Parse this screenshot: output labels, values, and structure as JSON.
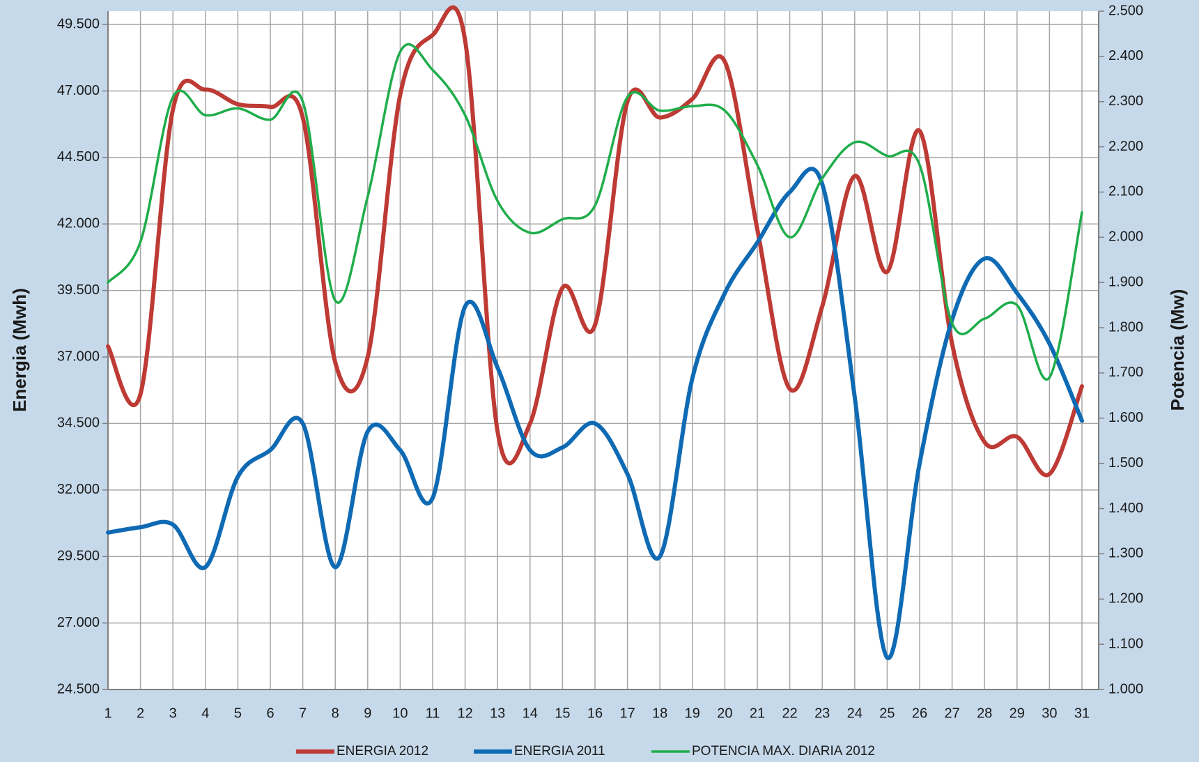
{
  "chart_data": {
    "type": "line",
    "categories": [
      "1",
      "2",
      "3",
      "4",
      "5",
      "6",
      "7",
      "8",
      "9",
      "10",
      "11",
      "12",
      "13",
      "14",
      "15",
      "16",
      "17",
      "18",
      "19",
      "20",
      "21",
      "22",
      "23",
      "24",
      "25",
      "26",
      "27",
      "28",
      "29",
      "30",
      "31"
    ],
    "y_label": "Energia (Mwh)",
    "y2_label": "Potencia (Mw)",
    "ylim": [
      24500,
      50000
    ],
    "yticks": [
      {
        "value": 24500,
        "label": "24.500"
      },
      {
        "value": 27000,
        "label": "27.000"
      },
      {
        "value": 29500,
        "label": "29.500"
      },
      {
        "value": 32000,
        "label": "32.000"
      },
      {
        "value": 34500,
        "label": "34.500"
      },
      {
        "value": 37000,
        "label": "37.000"
      },
      {
        "value": 39500,
        "label": "39.500"
      },
      {
        "value": 42000,
        "label": "42.000"
      },
      {
        "value": 44500,
        "label": "44.500"
      },
      {
        "value": 47000,
        "label": "47.000"
      },
      {
        "value": 49500,
        "label": "49.500"
      }
    ],
    "y2lim": [
      1000,
      2500
    ],
    "y2ticks": [
      {
        "value": 1000,
        "label": "1.000"
      },
      {
        "value": 1100,
        "label": "1.100"
      },
      {
        "value": 1200,
        "label": "1.200"
      },
      {
        "value": 1300,
        "label": "1.300"
      },
      {
        "value": 1400,
        "label": "1.400"
      },
      {
        "value": 1500,
        "label": "1.500"
      },
      {
        "value": 1600,
        "label": "1.600"
      },
      {
        "value": 1700,
        "label": "1.700"
      },
      {
        "value": 1800,
        "label": "1.800"
      },
      {
        "value": 1900,
        "label": "1.900"
      },
      {
        "value": 2000,
        "label": "2.000"
      },
      {
        "value": 2100,
        "label": "2.100"
      },
      {
        "value": 2200,
        "label": "2.200"
      },
      {
        "value": 2300,
        "label": "2.300"
      },
      {
        "value": 2400,
        "label": "2.400"
      },
      {
        "value": 2500,
        "label": "2.500"
      }
    ],
    "grid": true,
    "smooth": true,
    "legend": "bottom",
    "series": [
      {
        "name": "ENERGIA 2012",
        "color": "#be3a34",
        "width": 6,
        "values": [
          37400,
          35600,
          46300,
          47050,
          46500,
          46400,
          46000,
          36800,
          37000,
          46850,
          49100,
          48900,
          34200,
          34500,
          39600,
          38200,
          46600,
          46000,
          46700,
          48100,
          41800,
          35800,
          38900,
          43800,
          40200,
          45500,
          37500,
          33800,
          34000,
          32600,
          35900
        ]
      },
      {
        "name": "ENERGIA 2011",
        "color": "#0f6ab4",
        "width": 6,
        "values": [
          30400,
          30600,
          30700,
          29100,
          32500,
          33500,
          34500,
          29100,
          34200,
          33500,
          31700,
          38900,
          36600,
          33500,
          33600,
          34500,
          32600,
          29500,
          36200,
          39400,
          41300,
          43200,
          43500,
          35500,
          25700,
          33000,
          38400,
          40700,
          39400,
          37500,
          34600
        ]
      },
      {
        "name": "POTENCIA MAX. DIARIA 2012",
        "color": "#1fad4b",
        "width": 3.5,
        "axis": "y2",
        "values": [
          1900,
          1990,
          2310,
          2270,
          2285,
          2260,
          2300,
          1860,
          2090,
          2410,
          2370,
          2270,
          2080,
          2010,
          2040,
          2070,
          2310,
          2280,
          2290,
          2280,
          2160,
          2000,
          2130,
          2210,
          2180,
          2160,
          1810,
          1820,
          1850,
          1690,
          2055
        ]
      }
    ]
  }
}
